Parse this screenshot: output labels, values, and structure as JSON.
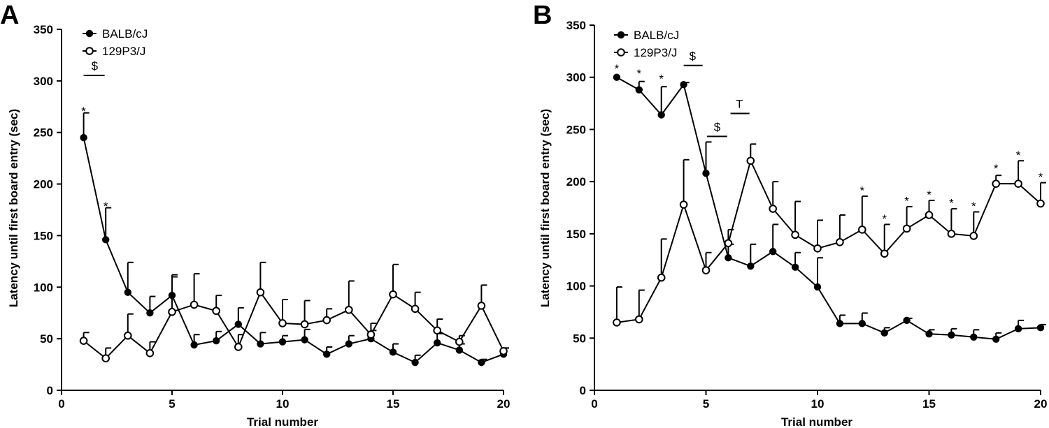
{
  "chart_data": [
    {
      "panel": "A",
      "type": "line",
      "xlabel": "Trial number",
      "ylabel": "Latency until first board entry (sec)",
      "xlim": [
        0,
        20
      ],
      "ylim": [
        0,
        350
      ],
      "xticks": [
        0,
        5,
        10,
        15,
        20
      ],
      "yticks": [
        0,
        50,
        100,
        150,
        200,
        250,
        300,
        350
      ],
      "legend": [
        "BALB/cJ",
        "129P3/J"
      ],
      "series": [
        {
          "name": "BALB/cJ",
          "marker": "filled",
          "x": [
            1,
            2,
            3,
            4,
            5,
            6,
            7,
            8,
            9,
            10,
            11,
            12,
            13,
            14,
            15,
            16,
            17,
            18,
            19,
            20
          ],
          "y": [
            245,
            146,
            95,
            75,
            92,
            44,
            48,
            64,
            45,
            47,
            49,
            35,
            45,
            50,
            37,
            27,
            46,
            39,
            27,
            35
          ],
          "err": [
            24,
            31,
            29,
            16,
            20,
            10,
            9,
            16,
            11,
            6,
            10,
            7,
            8,
            8,
            8,
            7,
            9,
            6,
            3,
            6
          ],
          "err_dir": [
            1,
            1,
            1,
            1,
            1,
            1,
            1,
            1,
            1,
            1,
            1,
            1,
            1,
            1,
            1,
            1,
            1,
            1,
            1,
            1
          ]
        },
        {
          "name": "129P3/J",
          "marker": "open",
          "x": [
            1,
            2,
            3,
            4,
            5,
            6,
            7,
            8,
            9,
            10,
            11,
            12,
            13,
            14,
            15,
            16,
            17,
            18,
            19,
            20
          ],
          "y": [
            48,
            31,
            53,
            36,
            76,
            83,
            77,
            42,
            95,
            65,
            64,
            68,
            78,
            54,
            93,
            79,
            58,
            47,
            82,
            38
          ],
          "err": [
            8,
            10,
            21,
            11,
            34,
            30,
            15,
            12,
            29,
            23,
            23,
            11,
            28,
            11,
            29,
            16,
            11,
            6,
            20,
            3
          ],
          "err_dir": [
            1,
            1,
            1,
            1,
            1,
            1,
            1,
            1,
            1,
            1,
            1,
            1,
            1,
            1,
            1,
            1,
            1,
            1,
            1,
            1
          ]
        }
      ],
      "annotations": [
        {
          "text": "*",
          "x": 1,
          "y": 272
        },
        {
          "text": "*",
          "x": 2,
          "y": 180
        },
        {
          "text": "$",
          "x": 1.5,
          "y": 308,
          "bar": [
            1,
            1.95
          ]
        }
      ]
    },
    {
      "panel": "B",
      "type": "line",
      "xlabel": "Trial number",
      "ylabel": "Latency until first board entry (sec)",
      "xlim": [
        0,
        20
      ],
      "ylim": [
        0,
        350
      ],
      "xticks": [
        0,
        5,
        10,
        15,
        20
      ],
      "yticks": [
        0,
        50,
        100,
        150,
        200,
        250,
        300,
        350
      ],
      "legend": [
        "BALB/cJ",
        "129P3/J"
      ],
      "series": [
        {
          "name": "BALB/cJ",
          "marker": "filled",
          "x": [
            1,
            2,
            3,
            4,
            5,
            6,
            7,
            8,
            9,
            10,
            11,
            12,
            13,
            14,
            15,
            16,
            17,
            18,
            19,
            20
          ],
          "y": [
            300,
            288,
            264,
            293,
            208,
            127,
            119,
            133,
            118,
            99,
            64,
            64,
            55,
            67,
            54,
            53,
            51,
            49,
            59,
            60
          ],
          "err": [
            0,
            8,
            27,
            2,
            30,
            13,
            21,
            26,
            14,
            28,
            8,
            10,
            5,
            2,
            4,
            6,
            7,
            6,
            8,
            3
          ],
          "err_dir": [
            1,
            1,
            1,
            1,
            1,
            1,
            1,
            1,
            1,
            1,
            1,
            1,
            1,
            1,
            1,
            1,
            1,
            1,
            1,
            1
          ]
        },
        {
          "name": "129P3/J",
          "marker": "open",
          "x": [
            1,
            2,
            3,
            4,
            5,
            6,
            7,
            8,
            9,
            10,
            11,
            12,
            13,
            14,
            15,
            16,
            17,
            18,
            19,
            20
          ],
          "y": [
            65,
            68,
            108,
            178,
            115,
            141,
            220,
            174,
            149,
            136,
            142,
            154,
            131,
            155,
            168,
            150,
            148,
            198,
            198,
            179
          ],
          "err": [
            34,
            28,
            37,
            43,
            17,
            13,
            16,
            26,
            32,
            27,
            26,
            32,
            28,
            21,
            14,
            24,
            23,
            8,
            22,
            20
          ],
          "err_dir": [
            1,
            1,
            1,
            1,
            1,
            1,
            1,
            1,
            1,
            1,
            1,
            1,
            1,
            1,
            1,
            1,
            1,
            1,
            1,
            1
          ]
        }
      ],
      "annotations": [
        {
          "text": "*",
          "x": 1,
          "y": 310
        },
        {
          "text": "*",
          "x": 2,
          "y": 305
        },
        {
          "text": "*",
          "x": 3,
          "y": 300
        },
        {
          "text": "$",
          "x": 4.4,
          "y": 314,
          "bar": [
            4,
            4.85
          ]
        },
        {
          "text": "$",
          "x": 5.5,
          "y": 246,
          "bar": [
            5.05,
            5.95
          ]
        },
        {
          "text": "T",
          "x": 6.5,
          "y": 268,
          "bar": [
            6.1,
            6.95
          ]
        },
        {
          "text": "*",
          "x": 12,
          "y": 193
        },
        {
          "text": "*",
          "x": 13,
          "y": 166
        },
        {
          "text": "*",
          "x": 14,
          "y": 183
        },
        {
          "text": "*",
          "x": 15,
          "y": 189
        },
        {
          "text": "*",
          "x": 16,
          "y": 181
        },
        {
          "text": "*",
          "x": 17,
          "y": 178
        },
        {
          "text": "*",
          "x": 18,
          "y": 214
        },
        {
          "text": "*",
          "x": 19,
          "y": 227
        },
        {
          "text": "*",
          "x": 20,
          "y": 206
        }
      ]
    }
  ]
}
